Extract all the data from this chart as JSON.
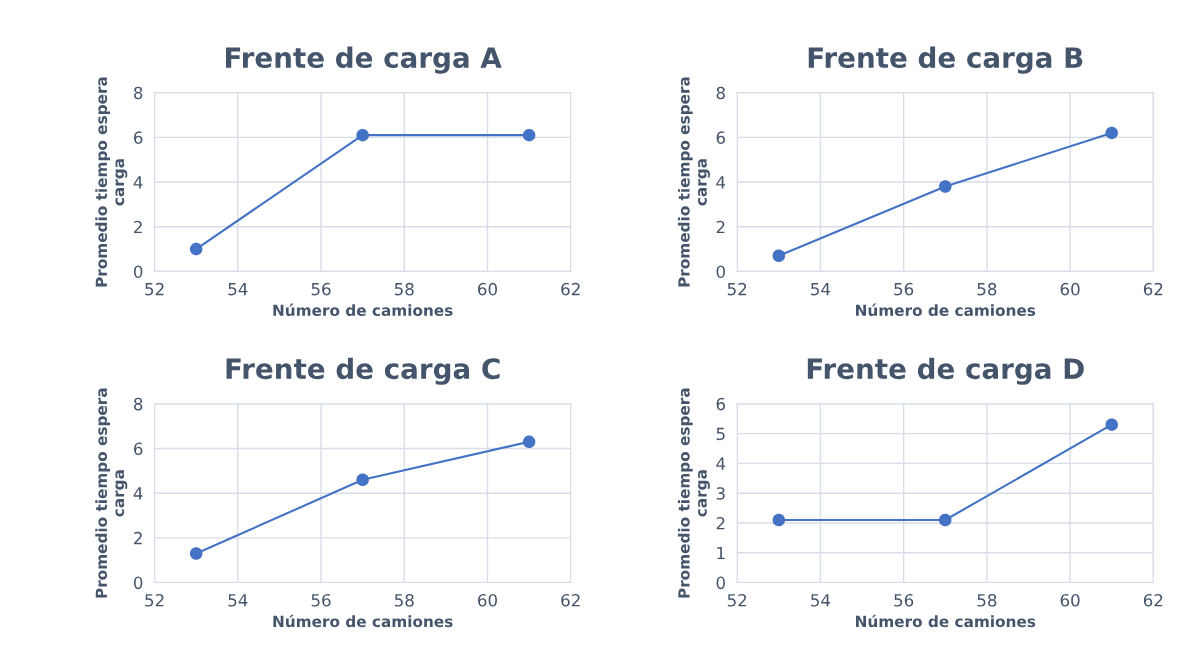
{
  "chart_data": [
    {
      "type": "line",
      "title": "Frente de carga A",
      "xlabel": "Número de camiones",
      "ylabel": "Promedio tiempo espera\ncarga",
      "x": [
        53,
        57,
        61
      ],
      "series": [
        {
          "color": "#4472c4",
          "values": [
            1.0,
            6.1,
            6.1
          ]
        }
      ],
      "xlim": [
        52,
        62
      ],
      "xticks": [
        52,
        54,
        56,
        58,
        60,
        62
      ],
      "ylim": [
        0,
        8
      ],
      "yticks": [
        0,
        2,
        4,
        6,
        8
      ],
      "grid": true,
      "marker": "circle"
    },
    {
      "type": "line",
      "title": "Frente de carga B",
      "xlabel": "Número de camiones",
      "ylabel": "Promedio tiempo espera\ncarga",
      "x": [
        53,
        57,
        61
      ],
      "series": [
        {
          "color": "#4472c4",
          "values": [
            0.7,
            3.8,
            6.2
          ]
        }
      ],
      "xlim": [
        52,
        62
      ],
      "xticks": [
        52,
        54,
        56,
        58,
        60,
        62
      ],
      "ylim": [
        0,
        8
      ],
      "yticks": [
        0,
        2,
        4,
        6,
        8
      ],
      "grid": true,
      "marker": "circle"
    },
    {
      "type": "line",
      "title": "Frente de carga C",
      "xlabel": "Número de camiones",
      "ylabel": "Promedio tiempo espera\ncarga",
      "x": [
        53,
        57,
        61
      ],
      "series": [
        {
          "color": "#4472c4",
          "values": [
            1.3,
            4.6,
            6.3
          ]
        }
      ],
      "xlim": [
        52,
        62
      ],
      "xticks": [
        52,
        54,
        56,
        58,
        60,
        62
      ],
      "ylim": [
        0,
        8
      ],
      "yticks": [
        0,
        2,
        4,
        6,
        8
      ],
      "grid": true,
      "marker": "circle"
    },
    {
      "type": "line",
      "title": "Frente de carga D",
      "xlabel": "Número de camiones",
      "ylabel": "Promedio tiempo espera\ncarga",
      "x": [
        53,
        57,
        61
      ],
      "series": [
        {
          "color": "#4472c4",
          "values": [
            2.1,
            2.1,
            5.3
          ]
        }
      ],
      "xlim": [
        52,
        62
      ],
      "xticks": [
        52,
        54,
        56,
        58,
        60,
        62
      ],
      "ylim": [
        0,
        6
      ],
      "yticks": [
        0,
        1,
        2,
        3,
        4,
        5,
        6
      ],
      "grid": true,
      "marker": "circle"
    }
  ]
}
